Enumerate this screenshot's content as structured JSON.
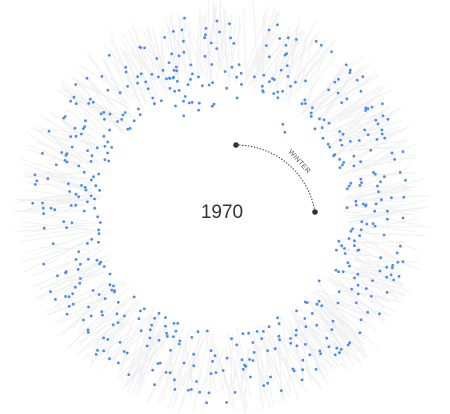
{
  "chart_data": {
    "type": "scatter",
    "layout": "radial",
    "title": "",
    "year": "1970",
    "highlight_season": "WINTER",
    "series": [
      {
        "color": "#4a8cf0",
        "point_count": 520
      }
    ],
    "background_color": "#f0f0f0",
    "dot_color": "#4a8cf0",
    "marker_color": "#333333",
    "arc_color": "#333333"
  }
}
